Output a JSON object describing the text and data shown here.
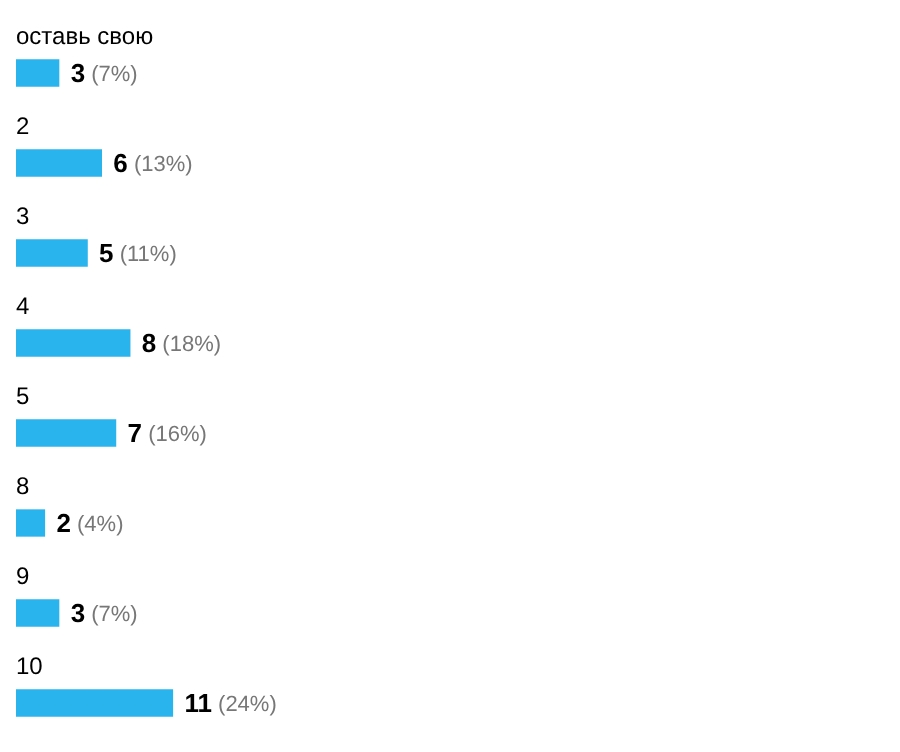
{
  "chart_data": {
    "type": "bar",
    "orientation": "horizontal",
    "tick_labels": false,
    "categories": [
      "оставь свою",
      "2",
      "3",
      "4",
      "5",
      "8",
      "9",
      "10"
    ],
    "values": [
      3,
      6,
      5,
      8,
      7,
      2,
      3,
      11
    ],
    "color": "#29b4ee",
    "value_labels": [
      "3 (7%)",
      "6 (13%)",
      "5 (11%)",
      "8 (18%)",
      "7 (16%)",
      "2 (4%)",
      "3 (7%)",
      "11 (24%)"
    ],
    "legend": false
  }
}
